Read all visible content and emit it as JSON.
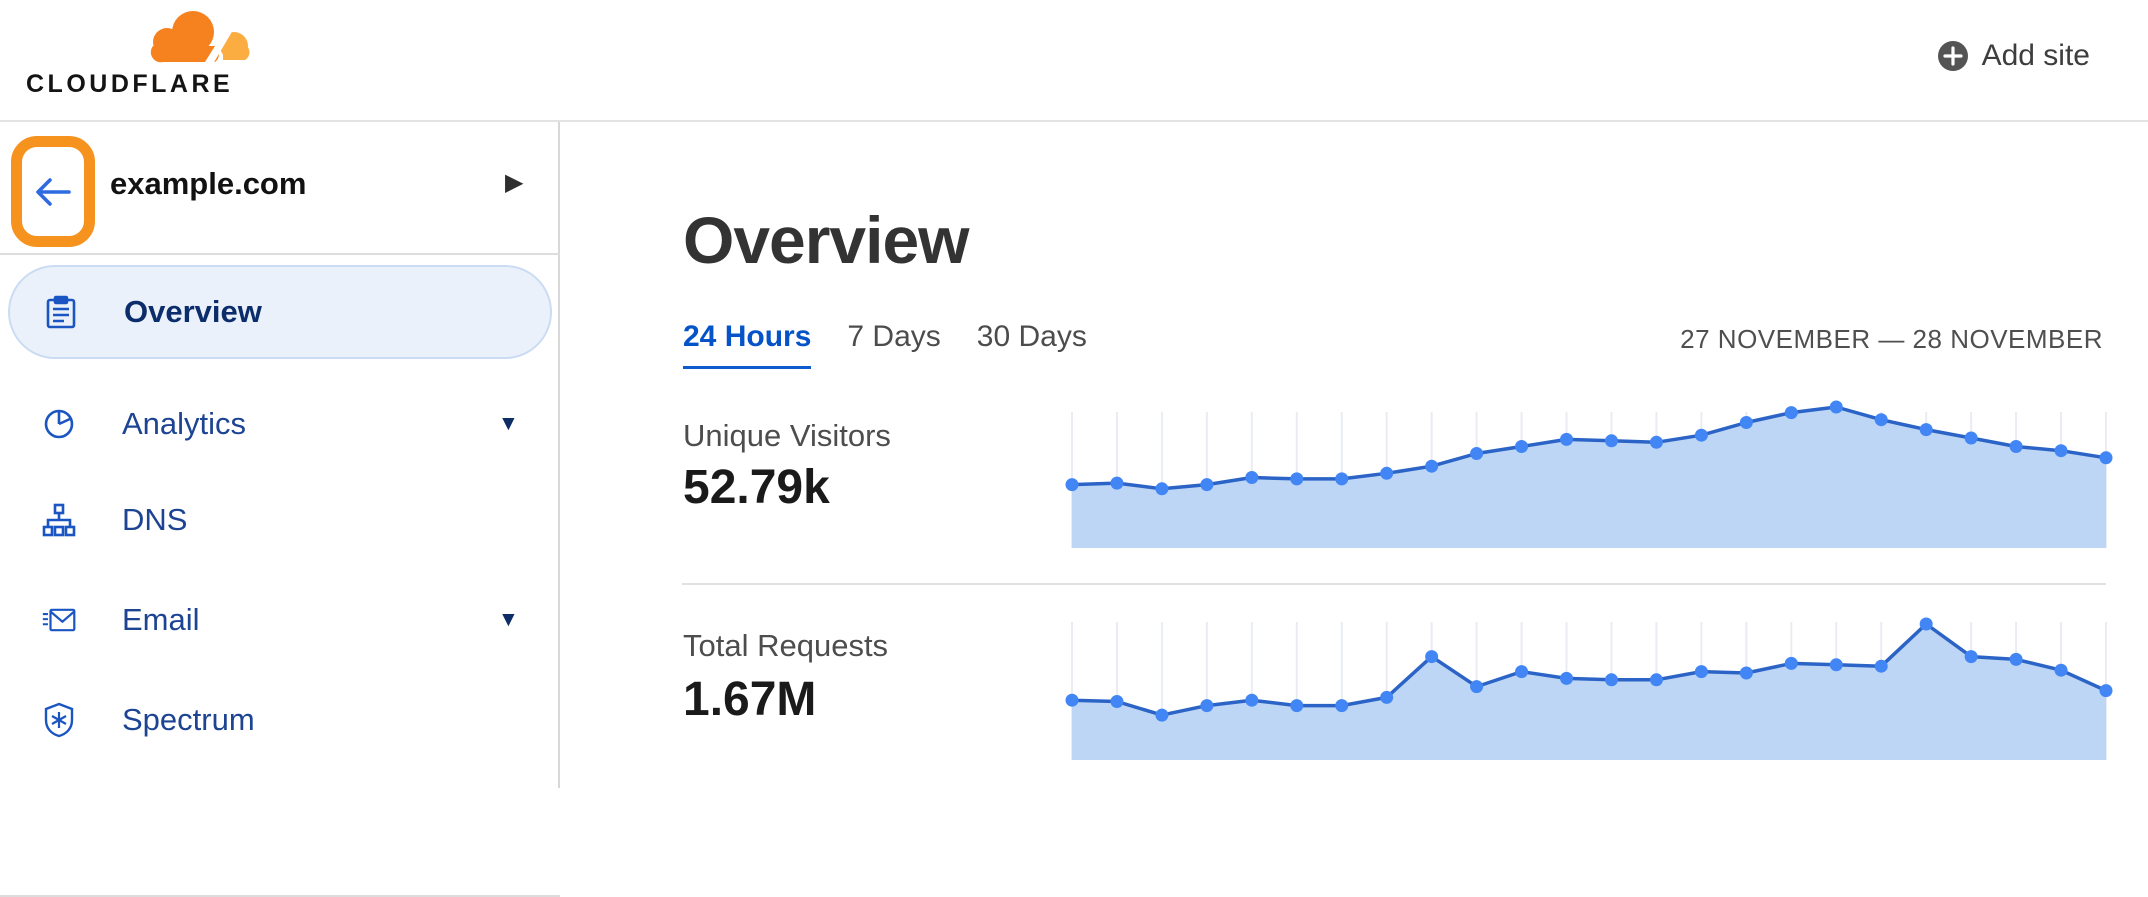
{
  "header": {
    "logo_text": "CLOUDFLARE",
    "add_site_label": "Add site"
  },
  "sidebar": {
    "site_name": "example.com",
    "items": [
      {
        "label": "Overview",
        "icon": "clipboard-icon",
        "selected": true,
        "expandable": false
      },
      {
        "label": "Analytics",
        "icon": "pie-chart-icon",
        "selected": false,
        "expandable": true
      },
      {
        "label": "DNS",
        "icon": "sitemap-icon",
        "selected": false,
        "expandable": false
      },
      {
        "label": "Email",
        "icon": "email-icon",
        "selected": false,
        "expandable": true
      },
      {
        "label": "Spectrum",
        "icon": "shield-icon",
        "selected": false,
        "expandable": false
      }
    ]
  },
  "main": {
    "title": "Overview",
    "tabs": [
      {
        "label": "24 Hours",
        "active": true
      },
      {
        "label": "7 Days",
        "active": false
      },
      {
        "label": "30 Days",
        "active": false
      }
    ],
    "date_range": "27 NOVEMBER — 28 NOVEMBER",
    "metrics": [
      {
        "label": "Unique Visitors",
        "value": "52.79k"
      },
      {
        "label": "Total Requests",
        "value": "1.67M"
      }
    ]
  },
  "colors": {
    "brand_orange": "#f6821f",
    "brand_orange_light": "#fbad41",
    "annotation_orange": "#f6921e",
    "accent_blue": "#0553c8",
    "nav_blue": "#1c4493",
    "nav_selected_blue": "#0c2d6b",
    "chart_line": "#2b64c6",
    "chart_dot": "#4285f4",
    "chart_fill": "#bdd6f6",
    "chart_grid": "#e9ecf2"
  },
  "chart_data": [
    {
      "type": "area",
      "title": "Unique Visitors",
      "total": "52.79k",
      "period": "24 Hours",
      "points": 24,
      "x_axis": {
        "visible": false,
        "note": "24 hourly points, no tick labels shown"
      },
      "y_axis": {
        "visible": false,
        "unit": "percent_of_peak"
      },
      "values": [
        45,
        46,
        42,
        45,
        50,
        49,
        49,
        53,
        58,
        67,
        72,
        77,
        76,
        75,
        80,
        89,
        96,
        100,
        91,
        84,
        78,
        72,
        69,
        64
      ],
      "legend": "none",
      "grid": "vertical-only"
    },
    {
      "type": "area",
      "title": "Total Requests",
      "total": "1.67M",
      "period": "24 Hours",
      "points": 24,
      "x_axis": {
        "visible": false,
        "note": "24 hourly points, no tick labels shown"
      },
      "y_axis": {
        "visible": false,
        "unit": "percent_of_peak"
      },
      "values": [
        44,
        43,
        33,
        40,
        44,
        40,
        40,
        46,
        76,
        54,
        65,
        60,
        59,
        59,
        65,
        64,
        71,
        70,
        69,
        100,
        76,
        74,
        66,
        51
      ],
      "legend": "none",
      "grid": "vertical-only"
    }
  ]
}
